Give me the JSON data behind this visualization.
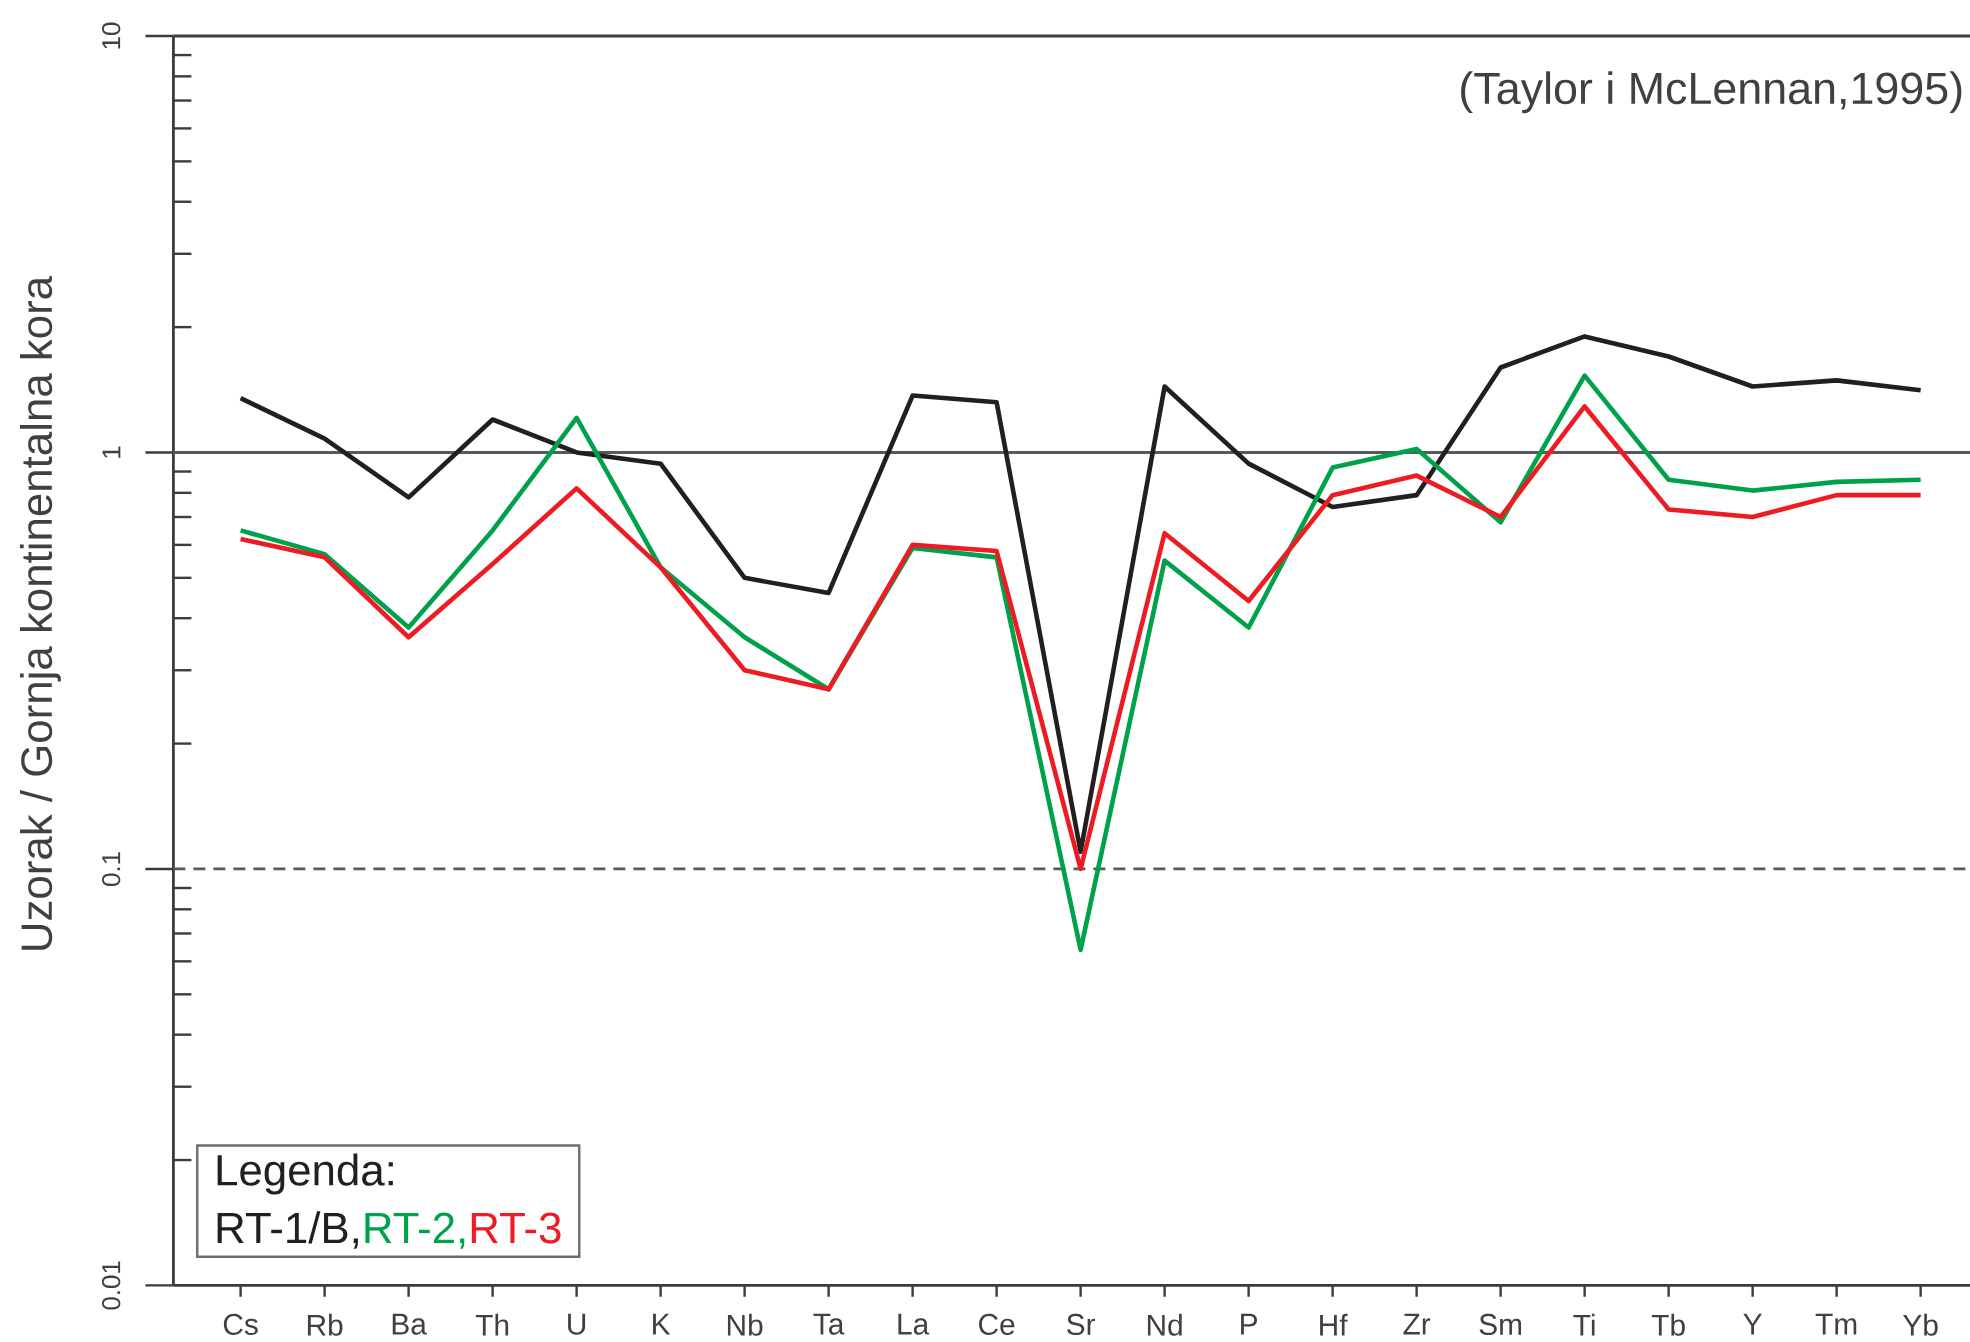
{
  "chart_data": {
    "type": "line",
    "ylabel": "Uzorak / Gornja kontinentalna kora",
    "annotations": [
      "(Taylor i McLennan,1995)"
    ],
    "legend_title": "Legenda:",
    "legend": "bottom left",
    "log": true,
    "marker": "none",
    "categories": [
      "Cs",
      "Rb",
      "Ba",
      "Th",
      "U",
      "K",
      "Nb",
      "Ta",
      "La",
      "Ce",
      "Sr",
      "Nd",
      "P",
      "Hf",
      "Zr",
      "Sm",
      "Ti",
      "Tb",
      "Y",
      "Tm",
      "Yb"
    ],
    "series": [
      {
        "name": "RT-1/B,",
        "color": "#231f20",
        "values": [
          1.35,
          1.08,
          0.78,
          1.2,
          1.0,
          0.94,
          0.5,
          0.46,
          1.37,
          1.32,
          0.11,
          1.44,
          0.94,
          0.74,
          0.79,
          1.6,
          1.9,
          1.7,
          1.44,
          1.49,
          1.41
        ]
      },
      {
        "name": "RT-2,",
        "color": "#00a14b",
        "values": [
          0.65,
          0.57,
          0.38,
          0.65,
          1.21,
          0.53,
          0.36,
          0.27,
          0.59,
          0.56,
          0.064,
          0.55,
          0.38,
          0.92,
          1.02,
          0.68,
          1.53,
          0.86,
          0.81,
          0.85,
          0.86
        ]
      },
      {
        "name": "RT-3",
        "color": "#ed1c24",
        "values": [
          0.62,
          0.56,
          0.36,
          0.54,
          0.82,
          0.53,
          0.3,
          0.27,
          0.6,
          0.58,
          0.1,
          0.64,
          0.44,
          0.79,
          0.88,
          0.7,
          1.29,
          0.73,
          0.7,
          0.79,
          0.79
        ]
      }
    ],
    "ylim": [
      0.01,
      10
    ],
    "yticks": [
      0.01,
      0.1,
      1,
      10
    ],
    "ref_lines": [
      {
        "axis": "y",
        "value": 1,
        "color": "#58595b",
        "line_style": "solid"
      },
      {
        "axis": "y",
        "value": 0.1,
        "color": "#58595b",
        "line_style": "dashed"
      }
    ]
  }
}
